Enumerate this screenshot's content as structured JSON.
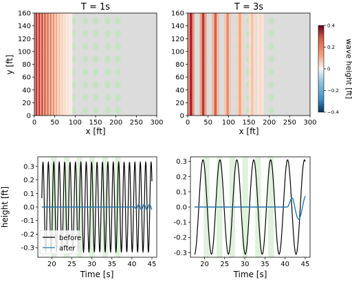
{
  "chart_data": [
    {
      "type": "heatmap",
      "title": "T = 1s",
      "xlabel": "x [ft]",
      "ylabel": "y [ft]",
      "xlim": [
        0,
        300
      ],
      "ylim": [
        0,
        160
      ],
      "xticks": [
        "0",
        "50",
        "100",
        "150",
        "200",
        "250",
        "300"
      ],
      "yticks": [
        "0",
        "20",
        "40",
        "60",
        "80",
        "100",
        "120",
        "140",
        "160"
      ],
      "wave_crest_x": [
        5,
        12,
        19,
        26,
        33,
        40,
        47,
        54,
        61,
        68,
        75,
        82,
        89
      ],
      "wave_amplitude": [
        0.4,
        0.38,
        0.36,
        0.33,
        0.3,
        0.27,
        0.24,
        0.2,
        0.16,
        0.13,
        0.1,
        0.07,
        0.05
      ],
      "vegetation_x": [
        35,
        65,
        95,
        125,
        150,
        180,
        205
      ],
      "vegetation_y": [
        8,
        28,
        48,
        68,
        88,
        108,
        128,
        148
      ],
      "background_color": "#dcdcdc",
      "vegetation_color": "#c5e3c2"
    },
    {
      "type": "heatmap",
      "title": "T = 3s",
      "xlabel": "x [ft]",
      "ylabel": "",
      "xlim": [
        0,
        300
      ],
      "ylim": [
        0,
        160
      ],
      "xticks": [
        "0",
        "50",
        "100",
        "150",
        "200",
        "250",
        "300"
      ],
      "yticks": [
        "0",
        "20",
        "40",
        "60",
        "80",
        "100",
        "120",
        "140",
        "160"
      ],
      "wave_crest_x": [
        8,
        38,
        68,
        98,
        128,
        158,
        178
      ],
      "wave_amplitude": [
        0.4,
        0.36,
        0.3,
        0.24,
        0.2,
        0.15,
        0.1
      ],
      "vegetation_x": [
        35,
        65,
        95,
        125,
        150,
        180,
        205
      ],
      "vegetation_y": [
        8,
        28,
        48,
        68,
        88,
        108,
        128,
        148
      ],
      "background_color": "#dcdcdc",
      "vegetation_color": "#c5e3c2"
    },
    {
      "type": "line",
      "title": "",
      "xlabel": "Time [s]",
      "ylabel": "height [ft]",
      "xlim": [
        16.5,
        46.2
      ],
      "ylim": [
        -0.37,
        0.37
      ],
      "xticks": [
        20,
        25,
        30,
        35,
        40,
        45
      ],
      "yticks": [
        -0.3,
        -0.2,
        -0.1,
        0.0,
        0.1,
        0.2,
        0.3
      ],
      "legend": "lower-left",
      "vegetation_bands_time": [
        [
          19.8,
          21.2
        ],
        [
          23.0,
          24.4
        ],
        [
          26.2,
          27.6
        ],
        [
          29.4,
          30.8
        ],
        [
          32.6,
          34.0
        ],
        [
          35.8,
          37.2
        ]
      ],
      "series": [
        {
          "name": "before",
          "color": "#000000",
          "period_s": 1.35,
          "amplitude_ft": 0.33,
          "t_start": 17.5,
          "t_end": 45.0
        },
        {
          "name": "after",
          "color": "#1f77b4",
          "baseline_ft": 0.0,
          "bump_time_s": [
            40.0,
            45.0
          ],
          "bump_amplitude_ft": 0.02
        }
      ]
    },
    {
      "type": "line",
      "title": "",
      "xlabel": "Time [s]",
      "ylabel": "",
      "xlim": [
        16.5,
        46.2
      ],
      "ylim": [
        -0.33,
        0.33
      ],
      "xticks": [
        20,
        25,
        30,
        35,
        40,
        45
      ],
      "yticks": [
        -0.3,
        -0.2,
        -0.1,
        0.0,
        0.1,
        0.2,
        0.3
      ],
      "legend": "none",
      "vegetation_bands_time": [
        [
          19.8,
          21.2
        ],
        [
          23.0,
          24.4
        ],
        [
          26.2,
          27.6
        ],
        [
          29.4,
          30.8
        ],
        [
          32.6,
          34.0
        ],
        [
          35.8,
          37.2
        ]
      ],
      "series": [
        {
          "name": "before",
          "color": "#000000",
          "period_s": 4.2,
          "amplitude_ft": 0.31,
          "t_start": 17.5,
          "t_end": 45.0
        },
        {
          "name": "after",
          "color": "#1f77b4",
          "baseline_ft": 0.0,
          "bump_time_s": [
            40.5,
            45.0
          ],
          "bump_amplitude_ft": 0.08
        }
      ]
    }
  ],
  "colorbar": {
    "label": "wave height [ft]",
    "ticks": [
      "0.4",
      "0.2",
      "0",
      "−0.2",
      "−0.4"
    ],
    "tick_values": [
      0.4,
      0.2,
      0.0,
      -0.2,
      -0.4
    ],
    "color_top": "#b2182b",
    "color_mid": "#f7f7f7",
    "color_bottom": "#2166ac"
  },
  "legend": {
    "items": [
      {
        "label": "before",
        "color": "#000000"
      },
      {
        "label": "after",
        "color": "#1f77b4"
      }
    ]
  },
  "titles": {
    "left": "T = 1s",
    "right": "T = 3s"
  },
  "labels": {
    "x_top": "x [ft]",
    "y_top": "y [ft]",
    "x_bottom": "Time [s]",
    "y_bottom": "height [ft]"
  }
}
